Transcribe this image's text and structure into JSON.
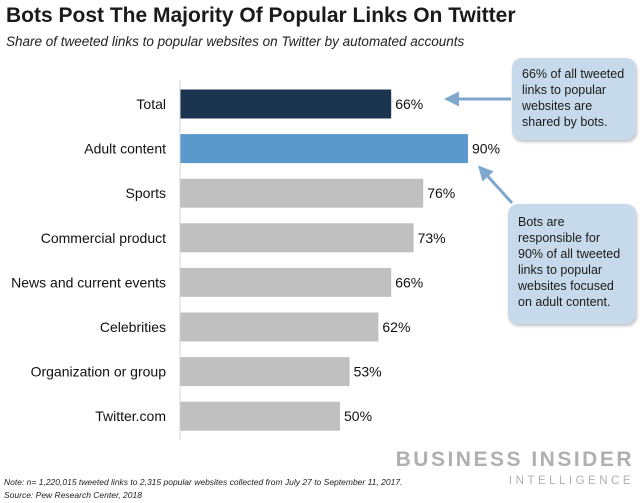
{
  "chart_data": {
    "type": "bar",
    "orientation": "horizontal",
    "title": "Bots Post The Majority Of Popular Links On Twitter",
    "subtitle": "Share of tweeted links to popular websites on Twitter by automated accounts",
    "categories": [
      "Total",
      "Adult content",
      "Sports",
      "Commercial product",
      "News and current events",
      "Celebrities",
      "Organization or group",
      "Twitter.com"
    ],
    "values": [
      66,
      90,
      76,
      73,
      66,
      62,
      53,
      50
    ],
    "value_labels": [
      "66%",
      "90%",
      "76%",
      "73%",
      "66%",
      "62%",
      "53%",
      "50%"
    ],
    "unit": "%",
    "xlim": [
      0,
      100
    ],
    "xlabel": "",
    "ylabel": "",
    "grid": false,
    "colors": [
      "#1b3550",
      "#5b99cc",
      "#c0c0c0",
      "#c0c0c0",
      "#c0c0c0",
      "#c0c0c0",
      "#c0c0c0",
      "#c0c0c0"
    ],
    "axis_color": "#d4d4d4",
    "annotations": [
      {
        "text": "66% of all tweeted\nlinks to popular\nwebsites are\nshared by bots.",
        "points_to": "Total"
      },
      {
        "text": "Bots are\nresponsible for\n90% of all tweeted\nlinks to popular\nwebsites focused\non adult content.",
        "points_to": "Adult content"
      }
    ],
    "arrow_color": "#7fa7cc"
  },
  "footnote": {
    "note": "Note: n= 1,220,015 tweeted links to 2,315 popular websites collected from July 27 to September 11, 2017.",
    "source": "Source: Pew Research Center, 2018"
  },
  "brand": {
    "line1": "BUSINESS INSIDER",
    "line2": "INTELLIGENCE"
  }
}
